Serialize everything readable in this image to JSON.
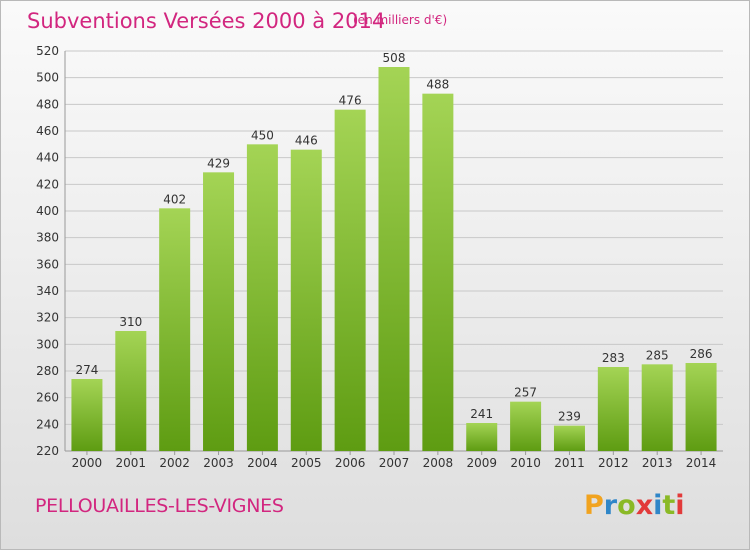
{
  "header": {
    "title": "Subventions Versées 2000 à 2014",
    "unit": "(en milliers d'€)"
  },
  "footer": {
    "commune": "PELLOUAILLES-LES-VIGNES",
    "brand": "Proxiti"
  },
  "colors": {
    "title": "#d2267f",
    "bar_top": "#a4d455",
    "bar_bottom": "#5e9c12",
    "grid": "#c8c8c8",
    "brand_letters": [
      "#f1a31f",
      "#2f86c8",
      "#8ab926",
      "#e23a3a",
      "#2f86c8",
      "#8ab926",
      "#e23a3a"
    ]
  },
  "chart_data": {
    "type": "bar",
    "title": "Subventions Versées 2000 à 2014",
    "categories": [
      "2000",
      "2001",
      "2002",
      "2003",
      "2004",
      "2005",
      "2006",
      "2007",
      "2008",
      "2009",
      "2010",
      "2011",
      "2012",
      "2013",
      "2014"
    ],
    "values": [
      274,
      310,
      402,
      429,
      450,
      446,
      476,
      508,
      488,
      241,
      257,
      239,
      283,
      285,
      286
    ],
    "xlabel": "",
    "ylabel": "",
    "ylim": [
      220,
      520
    ],
    "yticks": [
      220,
      240,
      260,
      280,
      300,
      320,
      340,
      360,
      380,
      400,
      420,
      440,
      460,
      480,
      500,
      520
    ],
    "grid": true,
    "legend": "none"
  }
}
